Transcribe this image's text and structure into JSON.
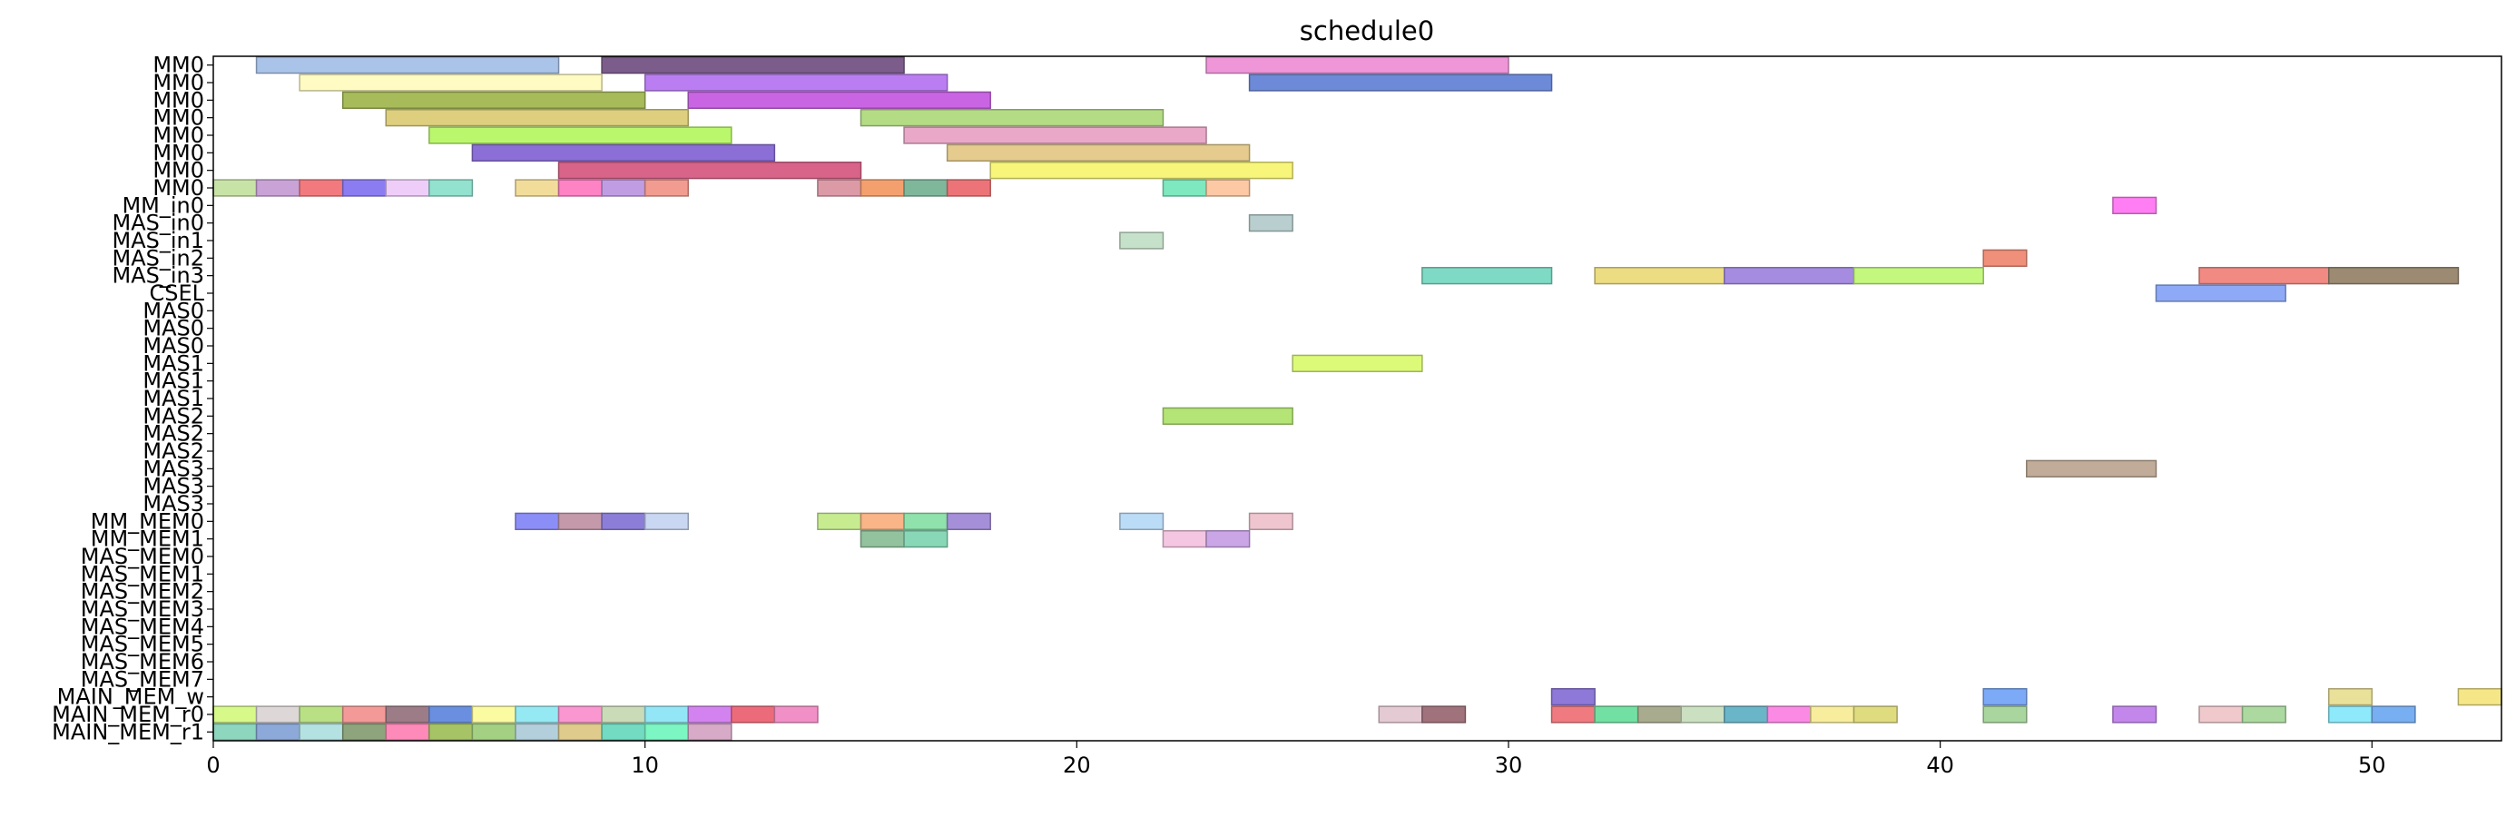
{
  "chart_data": {
    "type": "gantt",
    "title": "schedule0",
    "xlabel": "",
    "ylabel": "",
    "xlim": [
      0,
      53
    ],
    "xticks": [
      0,
      10,
      20,
      30,
      40,
      50
    ],
    "grid": false,
    "rows": [
      "MM0",
      "MM0",
      "MM0",
      "MM0",
      "MM0",
      "MM0",
      "MM0",
      "MM0",
      "MM_in0",
      "MAS_in0",
      "MAS_in1",
      "MAS_in2",
      "MAS_in3",
      "CSEL",
      "MAS0",
      "MAS0",
      "MAS0",
      "MAS1",
      "MAS1",
      "MAS1",
      "MAS2",
      "MAS2",
      "MAS2",
      "MAS3",
      "MAS3",
      "MAS3",
      "MM_MEM0",
      "MM_MEM1",
      "MAS_MEM0",
      "MAS_MEM1",
      "MAS_MEM2",
      "MAS_MEM3",
      "MAS_MEM4",
      "MAS_MEM5",
      "MAS_MEM6",
      "MAS_MEM7",
      "MAIN_MEM_w",
      "MAIN_MEM_r0",
      "MAIN_MEM_r1"
    ],
    "tasks": [
      {
        "row": 0,
        "start": 1,
        "end": 8,
        "color": "#a9c4e8"
      },
      {
        "row": 0,
        "start": 9,
        "end": 16,
        "color": "#7b5c8a"
      },
      {
        "row": 0,
        "start": 23,
        "end": 30,
        "color": "#ef96d8"
      },
      {
        "row": 1,
        "start": 2,
        "end": 9,
        "color": "#fffbc2"
      },
      {
        "row": 1,
        "start": 10,
        "end": 17,
        "color": "#bb7ef2"
      },
      {
        "row": 1,
        "start": 24,
        "end": 31,
        "color": "#6c8ad8"
      },
      {
        "row": 2,
        "start": 3,
        "end": 10,
        "color": "#a7bb5a"
      },
      {
        "row": 2,
        "start": 11,
        "end": 18,
        "color": "#c965e3"
      },
      {
        "row": 3,
        "start": 4,
        "end": 11,
        "color": "#ddcf7e"
      },
      {
        "row": 3,
        "start": 15,
        "end": 22,
        "color": "#b3dc85"
      },
      {
        "row": 4,
        "start": 5,
        "end": 12,
        "color": "#bbf76c"
      },
      {
        "row": 4,
        "start": 16,
        "end": 23,
        "color": "#e9a8c7"
      },
      {
        "row": 5,
        "start": 6,
        "end": 13,
        "color": "#8b6fd6"
      },
      {
        "row": 5,
        "start": 17,
        "end": 24,
        "color": "#e5cc8e"
      },
      {
        "row": 6,
        "start": 8,
        "end": 15,
        "color": "#d8648a"
      },
      {
        "row": 6,
        "start": 18,
        "end": 25,
        "color": "#f7f57a"
      },
      {
        "row": 7,
        "start": 0,
        "end": 1,
        "color": "#c8e3a6"
      },
      {
        "row": 7,
        "start": 1,
        "end": 2,
        "color": "#c9a3d6"
      },
      {
        "row": 7,
        "start": 2,
        "end": 3,
        "color": "#f27a7f"
      },
      {
        "row": 7,
        "start": 3,
        "end": 4,
        "color": "#8c7cf2"
      },
      {
        "row": 7,
        "start": 4,
        "end": 5,
        "color": "#efcdf9"
      },
      {
        "row": 7,
        "start": 5,
        "end": 6,
        "color": "#92e2cf"
      },
      {
        "row": 7,
        "start": 7,
        "end": 8,
        "color": "#f2dc9a"
      },
      {
        "row": 7,
        "start": 8,
        "end": 9,
        "color": "#fd83c5"
      },
      {
        "row": 7,
        "start": 9,
        "end": 10,
        "color": "#c09de3"
      },
      {
        "row": 7,
        "start": 10,
        "end": 11,
        "color": "#f29b90"
      },
      {
        "row": 7,
        "start": 14,
        "end": 15,
        "color": "#dc9aa7"
      },
      {
        "row": 7,
        "start": 15,
        "end": 16,
        "color": "#f4a06e"
      },
      {
        "row": 7,
        "start": 16,
        "end": 17,
        "color": "#7fb79b"
      },
      {
        "row": 7,
        "start": 17,
        "end": 18,
        "color": "#ec7478"
      },
      {
        "row": 7,
        "start": 22,
        "end": 23,
        "color": "#7ee8bf"
      },
      {
        "row": 7,
        "start": 23,
        "end": 24,
        "color": "#fcc9a4"
      },
      {
        "row": 8,
        "start": 44,
        "end": 45,
        "color": "#ff7ef3"
      },
      {
        "row": 9,
        "start": 24,
        "end": 25,
        "color": "#b9cfcf"
      },
      {
        "row": 10,
        "start": 21,
        "end": 22,
        "color": "#c6e1c9"
      },
      {
        "row": 11,
        "start": 41,
        "end": 42,
        "color": "#f0907a"
      },
      {
        "row": 12,
        "start": 28,
        "end": 31,
        "color": "#7edac4"
      },
      {
        "row": 12,
        "start": 32,
        "end": 35,
        "color": "#ecdc82"
      },
      {
        "row": 12,
        "start": 35,
        "end": 38,
        "color": "#a58ce0"
      },
      {
        "row": 12,
        "start": 38,
        "end": 41,
        "color": "#c3f77e"
      },
      {
        "row": 12,
        "start": 46,
        "end": 49,
        "color": "#f08a82"
      },
      {
        "row": 12,
        "start": 49,
        "end": 52,
        "color": "#9c8a72"
      },
      {
        "row": 13,
        "start": 45,
        "end": 48,
        "color": "#8eaaf6"
      },
      {
        "row": 17,
        "start": 25,
        "end": 28,
        "color": "#dcfa78"
      },
      {
        "row": 20,
        "start": 22,
        "end": 25,
        "color": "#b4e475"
      },
      {
        "row": 23,
        "start": 42,
        "end": 45,
        "color": "#c0ac98"
      },
      {
        "row": 26,
        "start": 7,
        "end": 8,
        "color": "#8c8ef8"
      },
      {
        "row": 26,
        "start": 8,
        "end": 9,
        "color": "#c49aab"
      },
      {
        "row": 26,
        "start": 9,
        "end": 10,
        "color": "#8c7ed8"
      },
      {
        "row": 26,
        "start": 10,
        "end": 11,
        "color": "#cad7f3"
      },
      {
        "row": 26,
        "start": 14,
        "end": 15,
        "color": "#c7ec90"
      },
      {
        "row": 26,
        "start": 15,
        "end": 16,
        "color": "#f9b487"
      },
      {
        "row": 26,
        "start": 16,
        "end": 17,
        "color": "#8fe2ab"
      },
      {
        "row": 26,
        "start": 17,
        "end": 18,
        "color": "#a48fd8"
      },
      {
        "row": 26,
        "start": 21,
        "end": 22,
        "color": "#bbdcf7"
      },
      {
        "row": 26,
        "start": 24,
        "end": 25,
        "color": "#efc5cf"
      },
      {
        "row": 27,
        "start": 15,
        "end": 16,
        "color": "#92c29e"
      },
      {
        "row": 27,
        "start": 16,
        "end": 17,
        "color": "#88d7b6"
      },
      {
        "row": 27,
        "start": 22,
        "end": 23,
        "color": "#f4c6e2"
      },
      {
        "row": 27,
        "start": 23,
        "end": 24,
        "color": "#cba6e6"
      },
      {
        "row": 36,
        "start": 31,
        "end": 32,
        "color": "#8e78d8"
      },
      {
        "row": 36,
        "start": 41,
        "end": 42,
        "color": "#7caaf6"
      },
      {
        "row": 36,
        "start": 49,
        "end": 50,
        "color": "#e9e09a"
      },
      {
        "row": 36,
        "start": 52,
        "end": 53,
        "color": "#f5e788"
      },
      {
        "row": 37,
        "start": 0,
        "end": 1,
        "color": "#d6f98a"
      },
      {
        "row": 37,
        "start": 1,
        "end": 2,
        "color": "#ddd7d7"
      },
      {
        "row": 37,
        "start": 2,
        "end": 3,
        "color": "#b9e085"
      },
      {
        "row": 37,
        "start": 3,
        "end": 4,
        "color": "#f39a98"
      },
      {
        "row": 37,
        "start": 4,
        "end": 5,
        "color": "#9c7c86"
      },
      {
        "row": 37,
        "start": 5,
        "end": 6,
        "color": "#6a8fe0"
      },
      {
        "row": 37,
        "start": 6,
        "end": 7,
        "color": "#fbfba2"
      },
      {
        "row": 37,
        "start": 7,
        "end": 8,
        "color": "#94e9f2"
      },
      {
        "row": 37,
        "start": 8,
        "end": 9,
        "color": "#fa96d0"
      },
      {
        "row": 37,
        "start": 9,
        "end": 10,
        "color": "#c9dcb7"
      },
      {
        "row": 37,
        "start": 10,
        "end": 11,
        "color": "#92e6f6"
      },
      {
        "row": 37,
        "start": 11,
        "end": 12,
        "color": "#d383f0"
      },
      {
        "row": 37,
        "start": 12,
        "end": 13,
        "color": "#ec6b7a"
      },
      {
        "row": 37,
        "start": 13,
        "end": 14,
        "color": "#f190c6"
      },
      {
        "row": 37,
        "start": 27,
        "end": 28,
        "color": "#e4cad2"
      },
      {
        "row": 37,
        "start": 28,
        "end": 29,
        "color": "#a0727c"
      },
      {
        "row": 37,
        "start": 31,
        "end": 32,
        "color": "#ef7a80"
      },
      {
        "row": 37,
        "start": 32,
        "end": 33,
        "color": "#72e0a2"
      },
      {
        "row": 37,
        "start": 33,
        "end": 34,
        "color": "#a8ab8e"
      },
      {
        "row": 37,
        "start": 34,
        "end": 35,
        "color": "#cbdfc1"
      },
      {
        "row": 37,
        "start": 35,
        "end": 36,
        "color": "#6ab5c8"
      },
      {
        "row": 37,
        "start": 36,
        "end": 37,
        "color": "#fa8ae4"
      },
      {
        "row": 37,
        "start": 37,
        "end": 38,
        "color": "#f7ed9c"
      },
      {
        "row": 37,
        "start": 38,
        "end": 39,
        "color": "#dfdc80"
      },
      {
        "row": 37,
        "start": 41,
        "end": 42,
        "color": "#a9d69e"
      },
      {
        "row": 37,
        "start": 44,
        "end": 45,
        "color": "#c387ec"
      },
      {
        "row": 37,
        "start": 46,
        "end": 47,
        "color": "#efc9cc"
      },
      {
        "row": 37,
        "start": 47,
        "end": 48,
        "color": "#acd9a0"
      },
      {
        "row": 37,
        "start": 49,
        "end": 50,
        "color": "#8ee9fa"
      },
      {
        "row": 37,
        "start": 50,
        "end": 51,
        "color": "#78aef2"
      },
      {
        "row": 38,
        "start": 0,
        "end": 1,
        "color": "#8ed6bd"
      },
      {
        "row": 38,
        "start": 1,
        "end": 2,
        "color": "#8ca9d9"
      },
      {
        "row": 38,
        "start": 2,
        "end": 3,
        "color": "#b4e2e2"
      },
      {
        "row": 38,
        "start": 3,
        "end": 4,
        "color": "#8ea47c"
      },
      {
        "row": 38,
        "start": 4,
        "end": 5,
        "color": "#fd8ab8"
      },
      {
        "row": 38,
        "start": 5,
        "end": 6,
        "color": "#a6c466"
      },
      {
        "row": 38,
        "start": 6,
        "end": 7,
        "color": "#a4d083"
      },
      {
        "row": 38,
        "start": 7,
        "end": 8,
        "color": "#b3cfdc"
      },
      {
        "row": 38,
        "start": 8,
        "end": 9,
        "color": "#dfcb8b"
      },
      {
        "row": 38,
        "start": 9,
        "end": 10,
        "color": "#72dbc2"
      },
      {
        "row": 38,
        "start": 10,
        "end": 11,
        "color": "#7cf6c2"
      },
      {
        "row": 38,
        "start": 11,
        "end": 12,
        "color": "#d7aac8"
      }
    ]
  }
}
